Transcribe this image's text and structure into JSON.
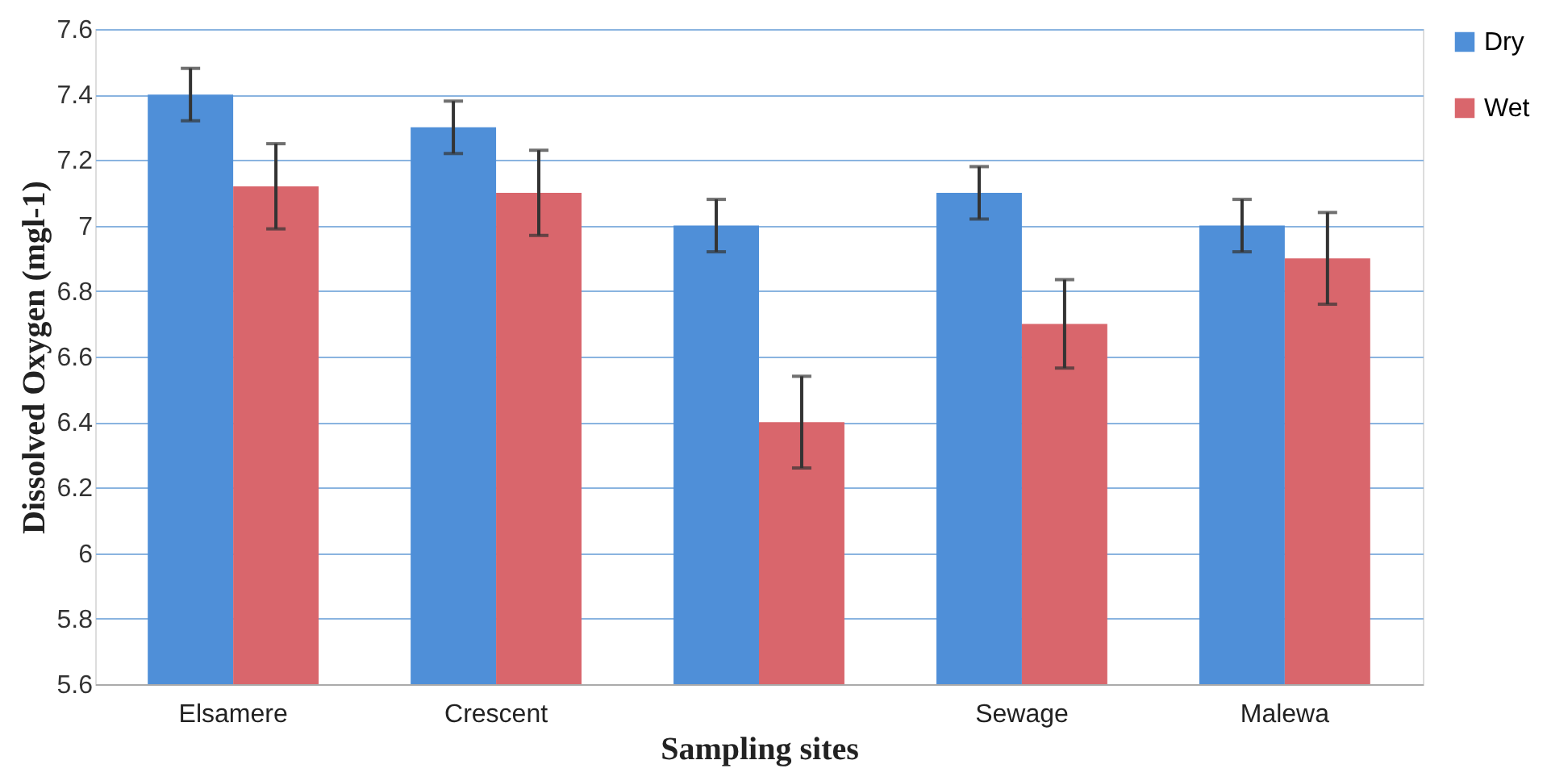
{
  "chart_data": {
    "type": "bar",
    "xlabel": "Sampling sites",
    "ylabel": "Dissolved Oxygen (mgl-1)",
    "categories": [
      "Elsamere",
      "Crescent",
      null,
      "Sewage",
      "Malewa"
    ],
    "series": [
      {
        "name": "Dry",
        "color": "#4f8fd8",
        "values": [
          7.4,
          7.3,
          7.0,
          7.1,
          7.0
        ],
        "errors": [
          0.08,
          0.08,
          0.08,
          0.08,
          0.08
        ]
      },
      {
        "name": "Wet",
        "color": "#d9666c",
        "values": [
          7.12,
          7.1,
          6.4,
          6.7,
          6.9
        ],
        "errors": [
          0.13,
          0.13,
          0.14,
          0.135,
          0.14
        ]
      }
    ],
    "ylim": [
      5.6,
      7.6
    ],
    "yticks": [
      5.6,
      5.8,
      6,
      6.2,
      6.4,
      6.6,
      6.8,
      7,
      7.2,
      7.4,
      7.6
    ],
    "grid": "y",
    "legend": "right"
  }
}
